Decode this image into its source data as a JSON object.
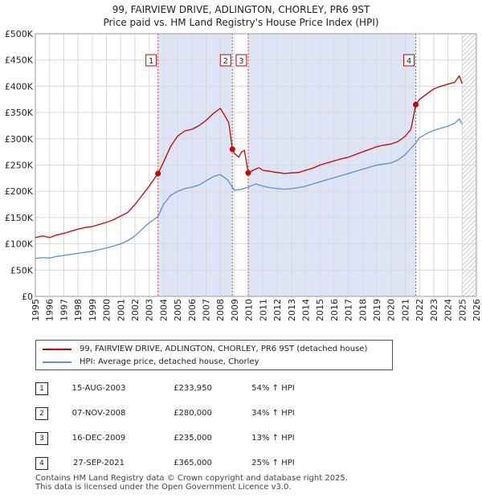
{
  "title": {
    "line1": "99, FAIRVIEW DRIVE, ADLINGTON, CHORLEY, PR6 9ST",
    "line2": "Price paid vs. HM Land Registry's House Price Index (HPI)"
  },
  "chart_data": {
    "type": "line",
    "ylim": [
      0,
      500000
    ],
    "xlim": [
      1995,
      2026
    ],
    "y_ticks": [
      {
        "value": 0,
        "label": "£0"
      },
      {
        "value": 50000,
        "label": "£50K"
      },
      {
        "value": 100000,
        "label": "£100K"
      },
      {
        "value": 150000,
        "label": "£150K"
      },
      {
        "value": 200000,
        "label": "£200K"
      },
      {
        "value": 250000,
        "label": "£250K"
      },
      {
        "value": 300000,
        "label": "£300K"
      },
      {
        "value": 350000,
        "label": "£350K"
      },
      {
        "value": 400000,
        "label": "£400K"
      },
      {
        "value": 450000,
        "label": "£450K"
      },
      {
        "value": 500000,
        "label": "£500K"
      }
    ],
    "x_ticks": [
      "1995",
      "1996",
      "1997",
      "1998",
      "1999",
      "2000",
      "2001",
      "2002",
      "2003",
      "2004",
      "2005",
      "2006",
      "2007",
      "2008",
      "2009",
      "2010",
      "2011",
      "2012",
      "2013",
      "2014",
      "2015",
      "2016",
      "2017",
      "2018",
      "2019",
      "2020",
      "2021",
      "2022",
      "2023",
      "2024",
      "2025",
      "2026"
    ],
    "hatch_from": 2025.0,
    "shaded_ranges": [
      [
        2003.62,
        2008.85
      ],
      [
        2009.96,
        2021.74
      ]
    ],
    "series": [
      {
        "name": "99, FAIRVIEW DRIVE, ADLINGTON, CHORLEY, PR6 9ST (detached house)",
        "color": "#cc0000",
        "points": [
          [
            1995.0,
            112000
          ],
          [
            1995.5,
            115000
          ],
          [
            1996.0,
            112000
          ],
          [
            1996.5,
            117000
          ],
          [
            1997.0,
            120000
          ],
          [
            1997.5,
            124000
          ],
          [
            1998.0,
            128000
          ],
          [
            1998.5,
            131000
          ],
          [
            1999.0,
            133000
          ],
          [
            1999.5,
            137000
          ],
          [
            2000.0,
            141000
          ],
          [
            2000.5,
            146000
          ],
          [
            2001.0,
            153000
          ],
          [
            2001.5,
            160000
          ],
          [
            2002.0,
            175000
          ],
          [
            2002.5,
            192000
          ],
          [
            2003.0,
            210000
          ],
          [
            2003.62,
            233950
          ],
          [
            2004.0,
            255000
          ],
          [
            2004.5,
            285000
          ],
          [
            2005.0,
            305000
          ],
          [
            2005.5,
            315000
          ],
          [
            2006.0,
            318000
          ],
          [
            2006.5,
            325000
          ],
          [
            2007.0,
            335000
          ],
          [
            2007.5,
            348000
          ],
          [
            2008.0,
            358000
          ],
          [
            2008.3,
            345000
          ],
          [
            2008.6,
            330000
          ],
          [
            2008.85,
            280000
          ],
          [
            2009.0,
            272000
          ],
          [
            2009.3,
            265000
          ],
          [
            2009.5,
            275000
          ],
          [
            2009.7,
            278000
          ],
          [
            2009.96,
            235000
          ],
          [
            2010.3,
            240000
          ],
          [
            2010.7,
            245000
          ],
          [
            2011.0,
            240000
          ],
          [
            2011.5,
            238000
          ],
          [
            2012.0,
            236000
          ],
          [
            2012.5,
            234000
          ],
          [
            2013.0,
            235000
          ],
          [
            2013.5,
            236000
          ],
          [
            2014.0,
            240000
          ],
          [
            2014.5,
            244000
          ],
          [
            2015.0,
            250000
          ],
          [
            2015.5,
            254000
          ],
          [
            2016.0,
            258000
          ],
          [
            2016.5,
            262000
          ],
          [
            2017.0,
            265000
          ],
          [
            2017.5,
            270000
          ],
          [
            2018.0,
            275000
          ],
          [
            2018.5,
            280000
          ],
          [
            2019.0,
            285000
          ],
          [
            2019.5,
            288000
          ],
          [
            2020.0,
            290000
          ],
          [
            2020.5,
            295000
          ],
          [
            2021.0,
            305000
          ],
          [
            2021.4,
            318000
          ],
          [
            2021.74,
            365000
          ],
          [
            2022.0,
            375000
          ],
          [
            2022.5,
            385000
          ],
          [
            2023.0,
            395000
          ],
          [
            2023.5,
            400000
          ],
          [
            2024.0,
            404000
          ],
          [
            2024.5,
            408000
          ],
          [
            2024.8,
            420000
          ],
          [
            2025.0,
            405000
          ]
        ]
      },
      {
        "name": "HPI: Average price, detached house, Chorley",
        "color": "#5b8fd0",
        "points": [
          [
            1995.0,
            72000
          ],
          [
            1995.5,
            74000
          ],
          [
            1996.0,
            73000
          ],
          [
            1996.5,
            76000
          ],
          [
            1997.0,
            78000
          ],
          [
            1997.5,
            80000
          ],
          [
            1998.0,
            82000
          ],
          [
            1998.5,
            84000
          ],
          [
            1999.0,
            86000
          ],
          [
            1999.5,
            89000
          ],
          [
            2000.0,
            92000
          ],
          [
            2000.5,
            96000
          ],
          [
            2001.0,
            100000
          ],
          [
            2001.5,
            106000
          ],
          [
            2002.0,
            115000
          ],
          [
            2002.5,
            128000
          ],
          [
            2003.0,
            140000
          ],
          [
            2003.62,
            152000
          ],
          [
            2004.0,
            175000
          ],
          [
            2004.5,
            192000
          ],
          [
            2005.0,
            200000
          ],
          [
            2005.5,
            205000
          ],
          [
            2006.0,
            208000
          ],
          [
            2006.5,
            212000
          ],
          [
            2007.0,
            220000
          ],
          [
            2007.5,
            228000
          ],
          [
            2008.0,
            232000
          ],
          [
            2008.5,
            222000
          ],
          [
            2008.85,
            208000
          ],
          [
            2009.0,
            202000
          ],
          [
            2009.5,
            204000
          ],
          [
            2009.96,
            208000
          ],
          [
            2010.5,
            214000
          ],
          [
            2011.0,
            210000
          ],
          [
            2011.5,
            207000
          ],
          [
            2012.0,
            205000
          ],
          [
            2012.5,
            204000
          ],
          [
            2013.0,
            205000
          ],
          [
            2013.5,
            207000
          ],
          [
            2014.0,
            210000
          ],
          [
            2014.5,
            214000
          ],
          [
            2015.0,
            218000
          ],
          [
            2015.5,
            222000
          ],
          [
            2016.0,
            226000
          ],
          [
            2016.5,
            230000
          ],
          [
            2017.0,
            234000
          ],
          [
            2017.5,
            238000
          ],
          [
            2018.0,
            242000
          ],
          [
            2018.5,
            246000
          ],
          [
            2019.0,
            250000
          ],
          [
            2019.5,
            252000
          ],
          [
            2020.0,
            254000
          ],
          [
            2020.5,
            260000
          ],
          [
            2021.0,
            270000
          ],
          [
            2021.74,
            292000
          ],
          [
            2022.0,
            302000
          ],
          [
            2022.5,
            310000
          ],
          [
            2023.0,
            316000
          ],
          [
            2023.5,
            320000
          ],
          [
            2024.0,
            324000
          ],
          [
            2024.5,
            330000
          ],
          [
            2024.8,
            338000
          ],
          [
            2025.0,
            328000
          ]
        ]
      }
    ],
    "markers": [
      {
        "label": "1",
        "x": 2003.62,
        "y": 233950
      },
      {
        "label": "2",
        "x": 2008.85,
        "y": 280000
      },
      {
        "label": "3",
        "x": 2009.96,
        "y": 235000
      },
      {
        "label": "4",
        "x": 2021.74,
        "y": 365000
      }
    ]
  },
  "legend": {
    "property_label": "99, FAIRVIEW DRIVE, ADLINGTON, CHORLEY, PR6 9ST (detached house)",
    "hpi_label": "HPI: Average price, detached house, Chorley",
    "property_color": "#cc0000",
    "hpi_color": "#5b8fd0"
  },
  "sales": [
    {
      "num": "1",
      "date": "15-AUG-2003",
      "price": "£233,950",
      "hpi": "54% ↑ HPI"
    },
    {
      "num": "2",
      "date": "07-NOV-2008",
      "price": "£280,000",
      "hpi": "34% ↑ HPI"
    },
    {
      "num": "3",
      "date": "16-DEC-2009",
      "price": "£235,000",
      "hpi": "13% ↑ HPI"
    },
    {
      "num": "4",
      "date": "27-SEP-2021",
      "price": "£365,000",
      "hpi": "25% ↑ HPI"
    }
  ],
  "footer": {
    "line1": "Contains HM Land Registry data © Crown copyright and database right 2025.",
    "line2": "This data is licensed under the Open Government Licence v3.0."
  }
}
